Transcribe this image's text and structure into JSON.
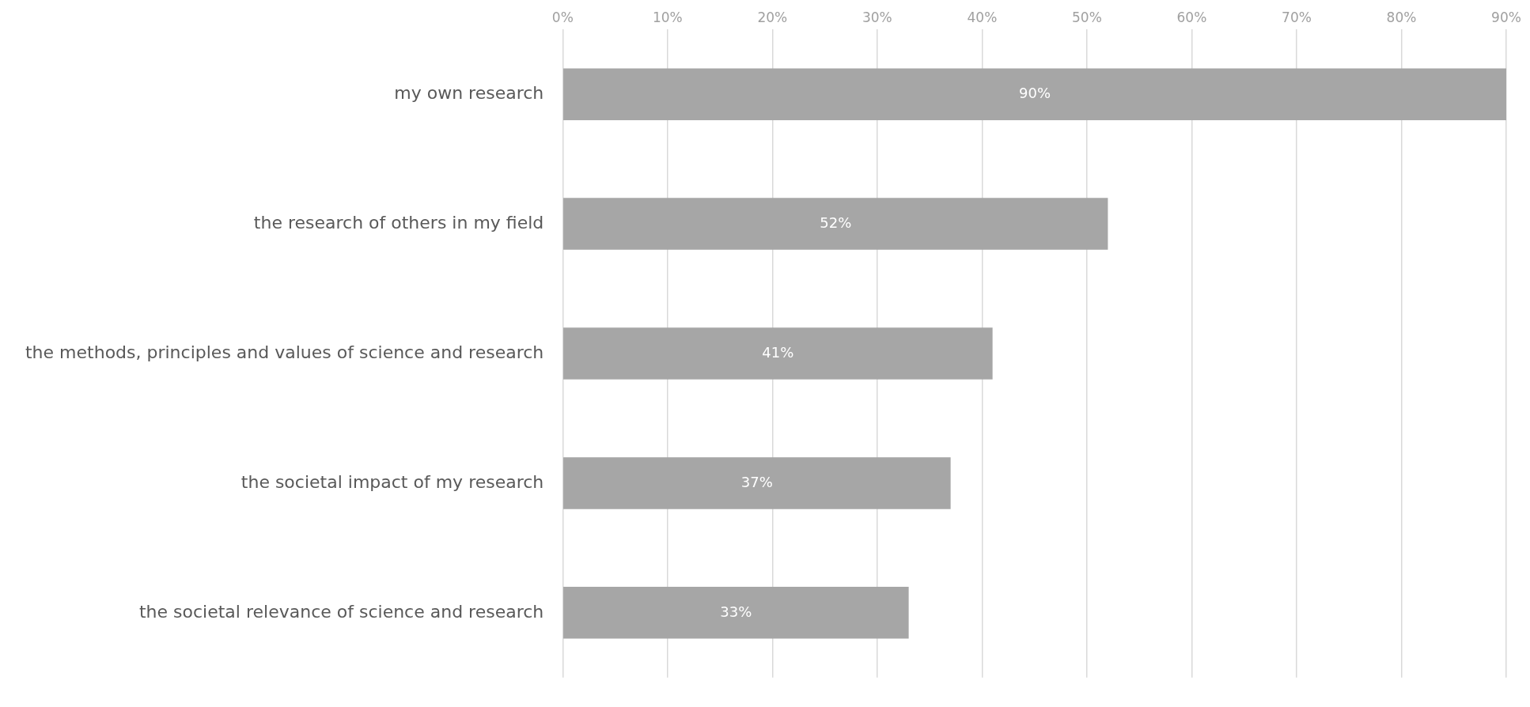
{
  "chart_data": {
    "type": "bar",
    "orientation": "horizontal",
    "categories": [
      "my own research",
      "the research of others in my field",
      "the methods, principles and values of science and research",
      "the societal impact of my research",
      "the societal relevance of science and research"
    ],
    "values": [
      90,
      52,
      41,
      37,
      33
    ],
    "value_labels": [
      "90%",
      "52%",
      "41%",
      "37%",
      "33%"
    ],
    "color": "#a6a6a6",
    "xlim": [
      0,
      90
    ],
    "xticks": [
      {
        "value": 0,
        "label": "0%"
      },
      {
        "value": 10,
        "label": "10%"
      },
      {
        "value": 20,
        "label": "20%"
      },
      {
        "value": 30,
        "label": "30%"
      },
      {
        "value": 40,
        "label": "40%"
      },
      {
        "value": 50,
        "label": "50%"
      },
      {
        "value": 60,
        "label": "60%"
      },
      {
        "value": 70,
        "label": "70%"
      },
      {
        "value": 80,
        "label": "80%"
      },
      {
        "value": 90,
        "label": "90%"
      }
    ],
    "grid": "x",
    "legend": false
  }
}
